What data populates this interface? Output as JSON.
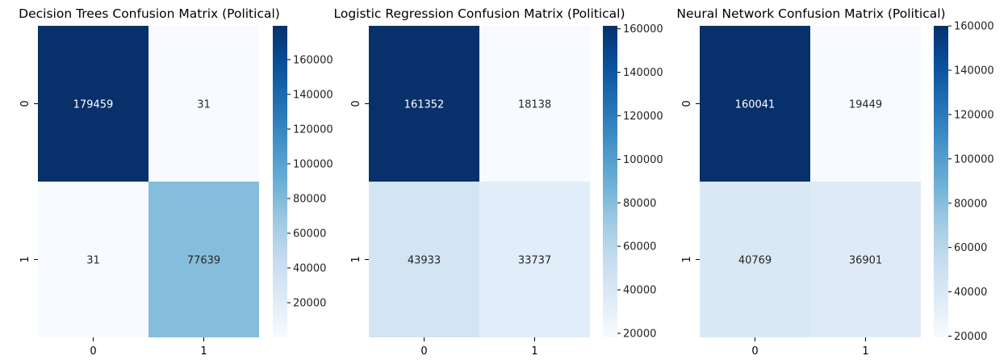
{
  "chart_data": [
    {
      "type": "heatmap",
      "title": "Decision Trees Confusion Matrix (Political)",
      "x_ticks": [
        "0",
        "1"
      ],
      "y_ticks": [
        "0",
        "1"
      ],
      "values": [
        [
          179459,
          31
        ],
        [
          31,
          77639
        ]
      ],
      "colormap": "Blues",
      "colorbar": {
        "min": 31,
        "max": 179459,
        "ticks": [
          20000,
          40000,
          60000,
          80000,
          100000,
          120000,
          140000,
          160000
        ]
      }
    },
    {
      "type": "heatmap",
      "title": "Logistic Regression Confusion Matrix (Political)",
      "x_ticks": [
        "0",
        "1"
      ],
      "y_ticks": [
        "0",
        "1"
      ],
      "values": [
        [
          161352,
          18138
        ],
        [
          43933,
          33737
        ]
      ],
      "colormap": "Blues",
      "colorbar": {
        "min": 18138,
        "max": 161352,
        "ticks": [
          20000,
          40000,
          60000,
          80000,
          100000,
          120000,
          140000,
          160000
        ]
      }
    },
    {
      "type": "heatmap",
      "title": "Neural Network Confusion Matrix (Political)",
      "x_ticks": [
        "0",
        "1"
      ],
      "y_ticks": [
        "0",
        "1"
      ],
      "values": [
        [
          160041,
          19449
        ],
        [
          40769,
          36901
        ]
      ],
      "colormap": "Blues",
      "colorbar": {
        "min": 19449,
        "max": 160041,
        "ticks": [
          20000,
          40000,
          60000,
          80000,
          100000,
          120000,
          140000,
          160000
        ]
      }
    }
  ]
}
